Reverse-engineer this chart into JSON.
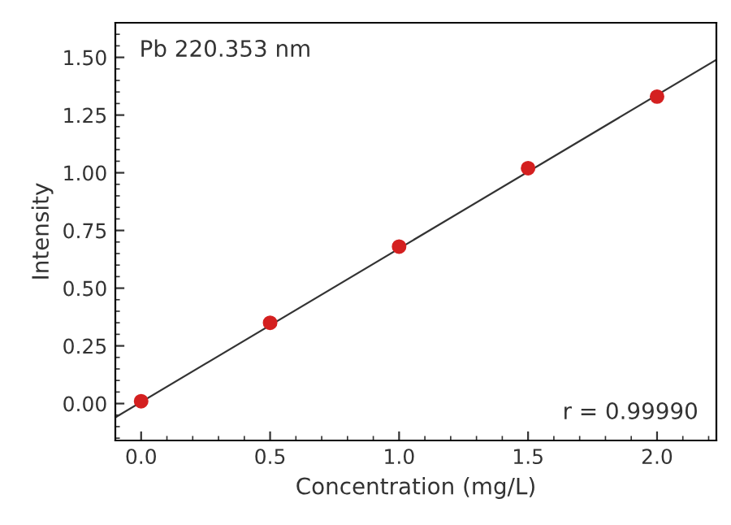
{
  "chart_data": {
    "type": "scatter",
    "xlabel": "Concentration (mg/L)",
    "ylabel": "Intensity",
    "annotations": [
      "Pb 220.353 nm",
      "r = 0.99990"
    ],
    "series": [
      {
        "color": "#d42020",
        "x": [
          0.0,
          0.5,
          1.0,
          1.5,
          2.0
        ],
        "values": [
          0.01,
          0.35,
          0.68,
          1.02,
          1.33
        ],
        "marker": "circle"
      },
      {
        "type": "line",
        "color": "#333333",
        "x": [
          -0.1,
          2.23
        ],
        "values": [
          -0.06,
          1.49
        ],
        "marker": "none",
        "line_style": "solid"
      }
    ],
    "xlim": [
      -0.1,
      2.23
    ],
    "ylim": [
      -0.16,
      1.65
    ],
    "xticks": [
      {
        "value": 0,
        "label": "0.0"
      },
      {
        "value": 0.5,
        "label": "0.5"
      },
      {
        "value": 1.0,
        "label": "1.0"
      },
      {
        "value": 1.5,
        "label": "1.5"
      },
      {
        "value": 2.0,
        "label": "2.0"
      }
    ],
    "yticks": [
      {
        "value": 0,
        "label": "0.00"
      },
      {
        "value": 0.25,
        "label": "0.25"
      },
      {
        "value": 0.5,
        "label": "0.50"
      },
      {
        "value": 0.75,
        "label": "0.75"
      },
      {
        "value": 1.0,
        "label": "1.00"
      },
      {
        "value": 1.25,
        "label": "1.25"
      },
      {
        "value": 1.5,
        "label": "1.50"
      }
    ],
    "grid": false
  }
}
